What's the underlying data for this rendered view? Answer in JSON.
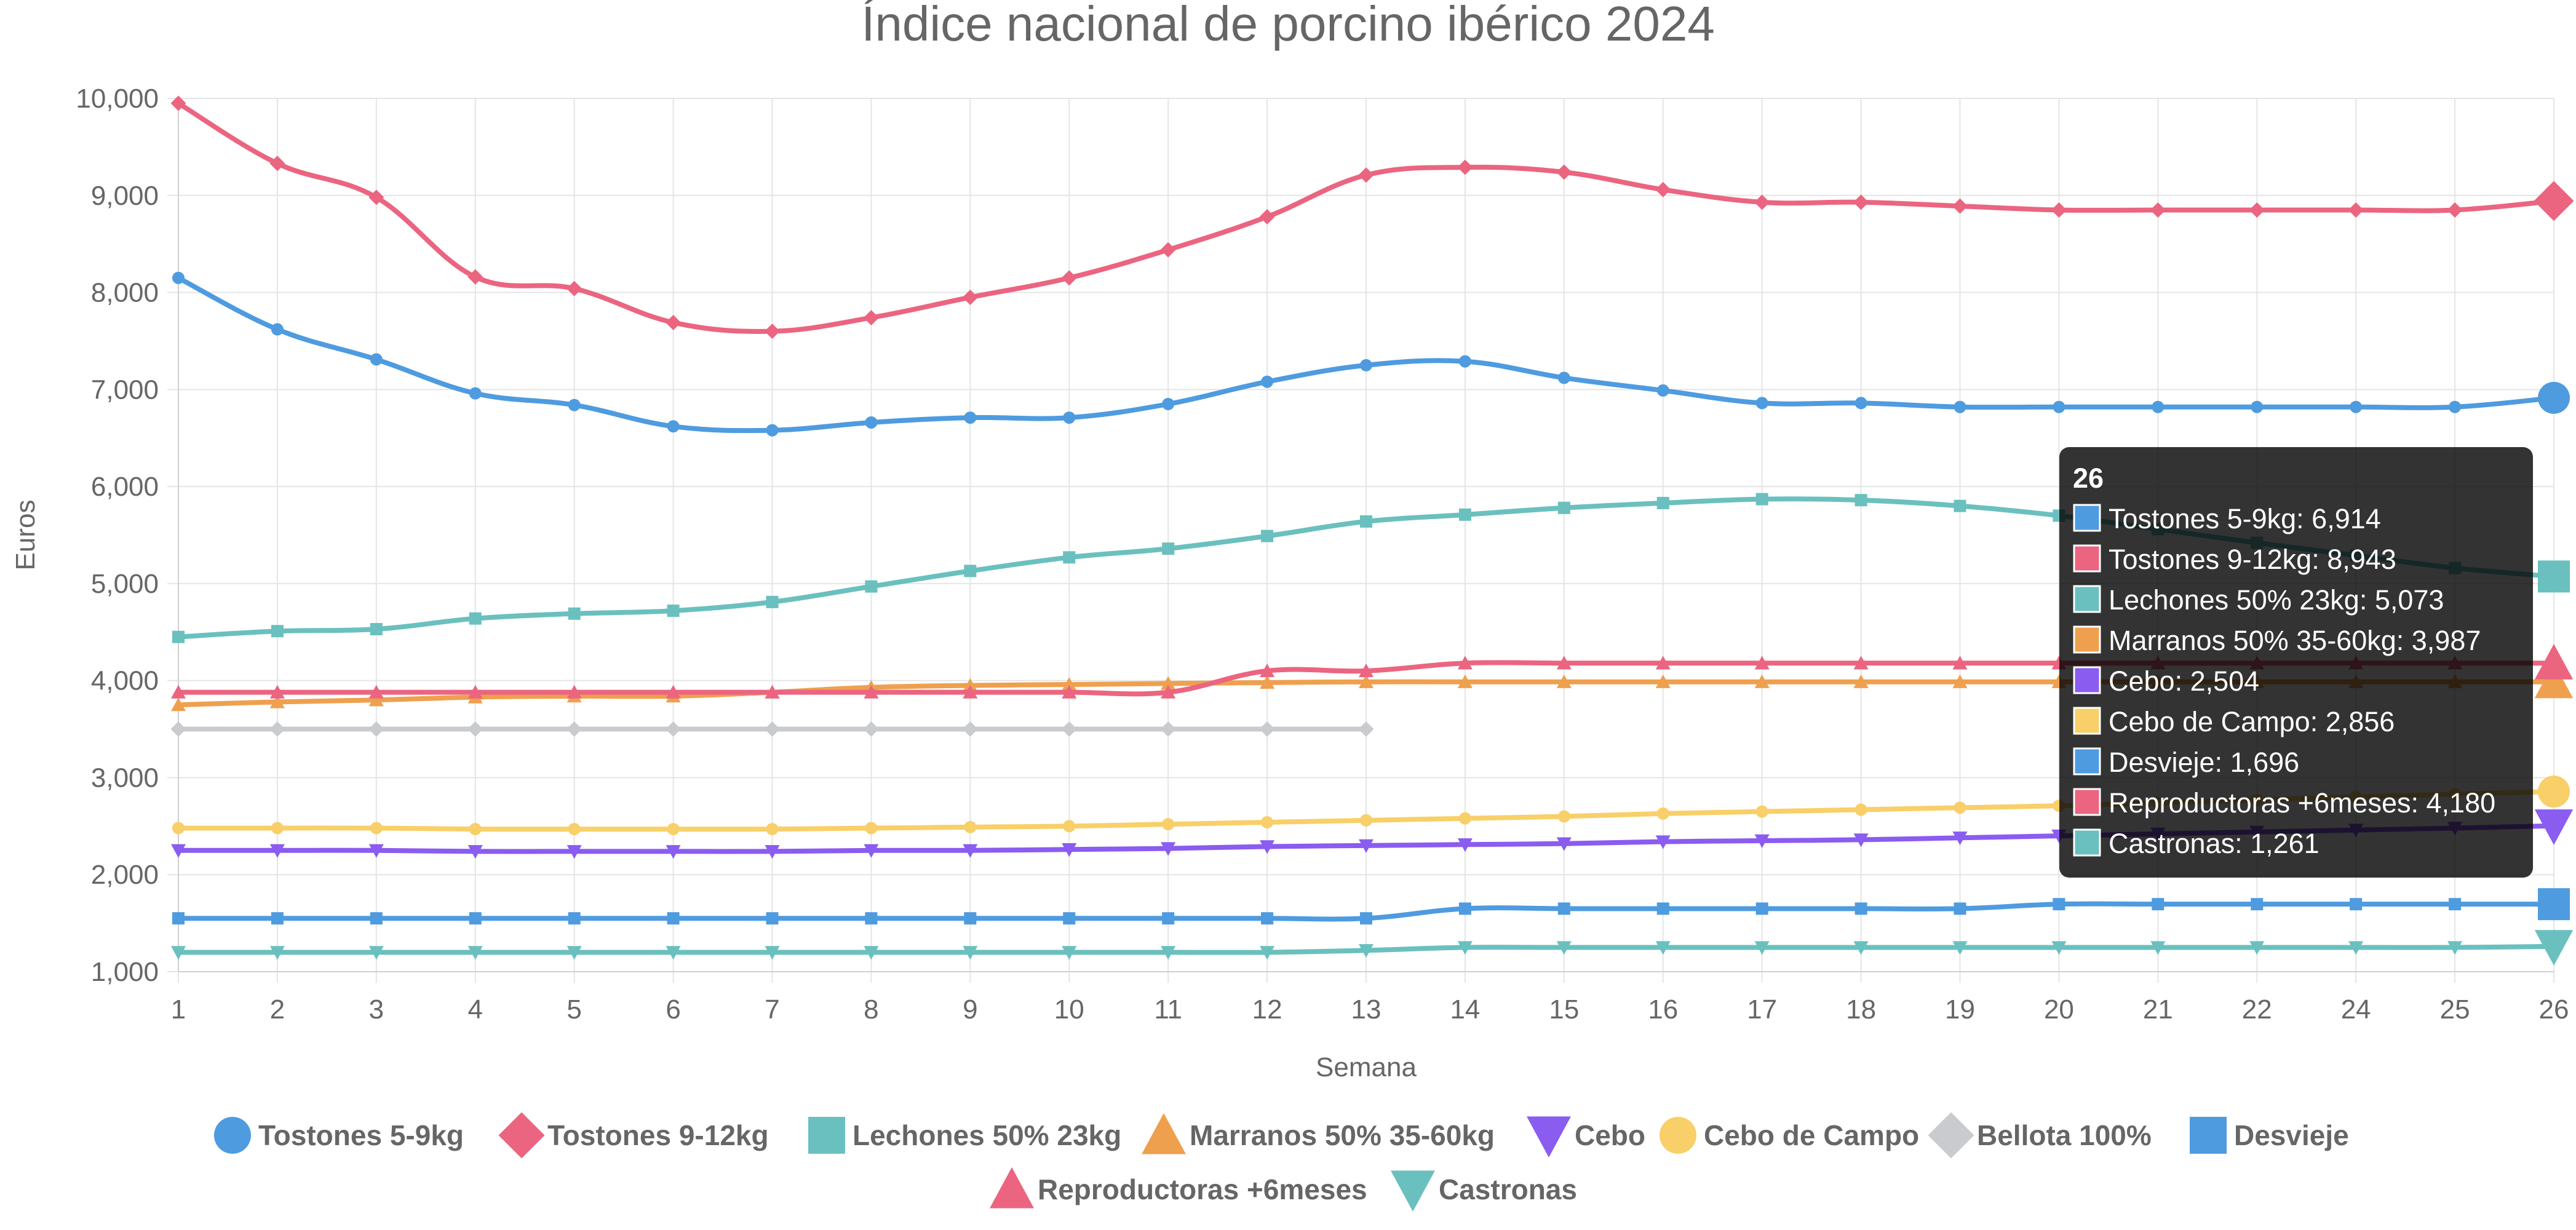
{
  "chart_data": {
    "type": "line",
    "title": "Índice nacional de porcino ibérico 2024",
    "xlabel": "Semana",
    "ylabel": "Euros",
    "categories": [
      "1",
      "2",
      "3",
      "4",
      "5",
      "6",
      "7",
      "8",
      "9",
      "10",
      "11",
      "12",
      "13",
      "14",
      "15",
      "16",
      "17",
      "18",
      "19",
      "20",
      "21",
      "22",
      "24",
      "25",
      "26"
    ],
    "yticks": [
      "1,000",
      "2,000",
      "3,000",
      "4,000",
      "5,000",
      "6,000",
      "7,000",
      "8,000",
      "9,000",
      "10,000"
    ],
    "ylim": [
      1000,
      10000
    ],
    "grid": true,
    "legend_position": "bottom",
    "series": [
      {
        "name": "Tostones 5-9kg",
        "color": "#4e9be0",
        "marker": "circle",
        "values": [
          8150,
          7620,
          7310,
          6960,
          6840,
          6620,
          6580,
          6660,
          6710,
          6710,
          6850,
          7080,
          7250,
          7290,
          7120,
          6990,
          6860,
          6860,
          6820,
          6820,
          6820,
          6820,
          6820,
          6820,
          6914
        ]
      },
      {
        "name": "Tostones 9-12kg",
        "color": "#eb6580",
        "marker": "diamond",
        "values": [
          9950,
          9330,
          8980,
          8160,
          8040,
          7690,
          7600,
          7740,
          7950,
          8150,
          8440,
          8780,
          9210,
          9290,
          9240,
          9060,
          8930,
          8930,
          8890,
          8850,
          8850,
          8850,
          8850,
          8850,
          8943
        ]
      },
      {
        "name": "Lechones 50% 23kg",
        "color": "#6ac0bf",
        "marker": "square",
        "values": [
          4450,
          4510,
          4530,
          4640,
          4690,
          4720,
          4810,
          4970,
          5130,
          5270,
          5360,
          5490,
          5640,
          5710,
          5780,
          5830,
          5870,
          5860,
          5800,
          5700,
          5560,
          5420,
          5290,
          5160,
          5073
        ]
      },
      {
        "name": "Marranos 50% 35-60kg",
        "color": "#efa04e",
        "marker": "triangle",
        "values": [
          3750,
          3780,
          3800,
          3830,
          3840,
          3840,
          3880,
          3930,
          3950,
          3960,
          3970,
          3980,
          3987,
          3987,
          3987,
          3987,
          3987,
          3987,
          3987,
          3987,
          3987,
          3987,
          3987,
          3987,
          3987
        ]
      },
      {
        "name": "Cebo",
        "color": "#8a5cf0",
        "marker": "triangle-down",
        "values": [
          2250,
          2250,
          2250,
          2240,
          2240,
          2240,
          2240,
          2250,
          2250,
          2260,
          2270,
          2290,
          2300,
          2310,
          2320,
          2340,
          2350,
          2360,
          2380,
          2400,
          2420,
          2440,
          2460,
          2480,
          2504
        ]
      },
      {
        "name": "Cebo de Campo",
        "color": "#f8cf68",
        "marker": "circle",
        "values": [
          2480,
          2480,
          2480,
          2470,
          2470,
          2470,
          2470,
          2480,
          2490,
          2500,
          2520,
          2540,
          2560,
          2580,
          2600,
          2630,
          2650,
          2670,
          2690,
          2710,
          2740,
          2770,
          2800,
          2830,
          2856
        ]
      },
      {
        "name": "Bellota 100%",
        "color": "#c9cbcf",
        "marker": "diamond",
        "values": [
          3500,
          3500,
          3500,
          3500,
          3500,
          3500,
          3500,
          3500,
          3500,
          3500,
          3500,
          3500,
          3500,
          null,
          null,
          null,
          null,
          null,
          null,
          null,
          null,
          null,
          null,
          null,
          null
        ]
      },
      {
        "name": "Desvieje",
        "color": "#4e9be0",
        "marker": "square",
        "values": [
          1550,
          1550,
          1550,
          1550,
          1550,
          1550,
          1550,
          1550,
          1550,
          1550,
          1550,
          1550,
          1550,
          1650,
          1650,
          1650,
          1650,
          1650,
          1650,
          1696,
          1696,
          1696,
          1696,
          1696,
          1696
        ]
      },
      {
        "name": "Reproductoras +6meses",
        "color": "#eb6580",
        "marker": "triangle",
        "values": [
          3880,
          3880,
          3880,
          3880,
          3880,
          3880,
          3880,
          3880,
          3880,
          3880,
          3880,
          4100,
          4100,
          4180,
          4180,
          4180,
          4180,
          4180,
          4180,
          4180,
          4180,
          4180,
          4180,
          4180,
          4180
        ]
      },
      {
        "name": "Castronas",
        "color": "#6ac0bf",
        "marker": "triangle-down",
        "values": [
          1200,
          1200,
          1200,
          1200,
          1200,
          1200,
          1200,
          1200,
          1200,
          1200,
          1200,
          1200,
          1220,
          1250,
          1250,
          1250,
          1250,
          1250,
          1250,
          1250,
          1250,
          1250,
          1250,
          1250,
          1261
        ]
      }
    ],
    "tooltip": {
      "title": "26",
      "lines": [
        "Tostones 5-9kg: 6,914",
        "Tostones 9-12kg: 8,943",
        "Lechones 50% 23kg: 5,073",
        "Marranos 50% 35-60kg: 3,987",
        "Cebo: 2,504",
        "Cebo de Campo: 2,856",
        "Desvieje: 1,696",
        "Reproductoras +6meses: 4,180",
        "Castronas: 1,261"
      ],
      "colors": [
        "#4e9be0",
        "#eb6580",
        "#6ac0bf",
        "#efa04e",
        "#8a5cf0",
        "#f8cf68",
        "#4e9be0",
        "#eb6580",
        "#6ac0bf"
      ]
    }
  }
}
